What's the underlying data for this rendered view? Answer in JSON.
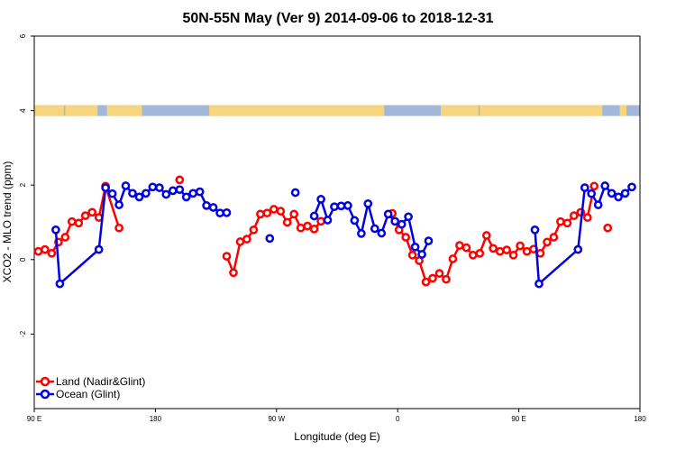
{
  "chart_data": {
    "type": "line",
    "title": "50N-55N May (Ver 9)   2014-09-06 to 2018-12-31",
    "xlabel": "Longitude (deg E)",
    "ylabel": "XCO2 - MLO trend (ppm)",
    "xlim": [
      90,
      540
    ],
    "ylim": [
      -4,
      6
    ],
    "x_ticks": [
      {
        "value": 90,
        "label": "90 E"
      },
      {
        "value": 180,
        "label": "180"
      },
      {
        "value": 270,
        "label": "90 W"
      },
      {
        "value": 360,
        "label": "0"
      },
      {
        "value": 450,
        "label": "90 E"
      },
      {
        "value": 540,
        "label": "180"
      }
    ],
    "y_ticks": [
      {
        "value": -2,
        "label": "-2"
      },
      {
        "value": 0,
        "label": "0"
      },
      {
        "value": 2,
        "label": "2"
      },
      {
        "value": 4,
        "label": "4"
      },
      {
        "value": 6,
        "label": "6"
      }
    ],
    "land_band": {
      "y": 4,
      "land_color": "#f7d57a",
      "ocean_color": "#a3b8d8"
    },
    "legend_position": "bottom-left",
    "series": [
      {
        "name": "Land (Nadir&Glint)",
        "color": "#ff0000",
        "segments": [
          [
            [
              93,
              0.22
            ],
            [
              98,
              0.27
            ],
            [
              103,
              0.17
            ],
            [
              108,
              0.47
            ],
            [
              113,
              0.6
            ],
            [
              118,
              1.02
            ],
            [
              123,
              0.98
            ],
            [
              128,
              1.18
            ],
            [
              133,
              1.27
            ],
            [
              138,
              1.13
            ],
            [
              143,
              1.97
            ],
            [
              153,
              0.85
            ]
          ],
          [
            [
              198,
              2.14
            ]
          ],
          [
            [
              233,
              0.09
            ],
            [
              238,
              -0.35
            ],
            [
              243,
              0.48
            ],
            [
              248,
              0.55
            ],
            [
              253,
              0.8
            ],
            [
              258,
              1.22
            ],
            [
              263,
              1.25
            ],
            [
              268,
              1.35
            ],
            [
              273,
              1.3
            ],
            [
              278,
              1.0
            ],
            [
              283,
              1.22
            ],
            [
              288,
              0.85
            ],
            [
              293,
              0.9
            ],
            [
              298,
              0.82
            ],
            [
              303,
              1.03
            ]
          ],
          [
            [
              356,
              1.24
            ],
            [
              361,
              0.8
            ],
            [
              366,
              0.6
            ],
            [
              371,
              0.12
            ],
            [
              376,
              -0.03
            ],
            [
              381,
              -0.6
            ],
            [
              386,
              -0.5
            ],
            [
              391,
              -0.37
            ],
            [
              396,
              -0.53
            ],
            [
              401,
              0.02
            ],
            [
              406,
              0.38
            ],
            [
              411,
              0.32
            ],
            [
              416,
              0.12
            ],
            [
              421,
              0.17
            ],
            [
              426,
              0.65
            ],
            [
              431,
              0.3
            ],
            [
              436,
              0.22
            ],
            [
              441,
              0.26
            ],
            [
              446,
              0.12
            ],
            [
              451,
              0.37
            ],
            [
              456,
              0.22
            ],
            [
              461,
              0.28
            ],
            [
              466,
              0.17
            ],
            [
              471,
              0.47
            ],
            [
              476,
              0.6
            ],
            [
              481,
              1.02
            ],
            [
              486,
              0.98
            ],
            [
              491,
              1.18
            ],
            [
              496,
              1.27
            ],
            [
              501,
              1.13
            ],
            [
              506,
              1.97
            ]
          ],
          [
            [
              516,
              0.85
            ]
          ]
        ]
      },
      {
        "name": "Ocean (Glint)",
        "color": "#0000e0",
        "segments": [
          [
            [
              106,
              0.8
            ],
            [
              109,
              -0.65
            ],
            [
              138,
              0.27
            ],
            [
              143,
              1.93
            ],
            [
              148,
              1.77
            ],
            [
              153,
              1.47
            ],
            [
              158,
              1.98
            ],
            [
              163,
              1.78
            ],
            [
              168,
              1.68
            ],
            [
              173,
              1.78
            ],
            [
              178,
              1.95
            ],
            [
              183,
              1.93
            ],
            [
              188,
              1.75
            ],
            [
              193,
              1.85
            ],
            [
              198,
              1.88
            ],
            [
              203,
              1.68
            ],
            [
              208,
              1.78
            ],
            [
              213,
              1.82
            ],
            [
              218,
              1.45
            ],
            [
              223,
              1.4
            ],
            [
              228,
              1.25
            ],
            [
              233,
              1.26
            ]
          ],
          [
            [
              265,
              0.57
            ]
          ],
          [
            [
              284,
              1.8
            ]
          ],
          [
            [
              298,
              1.17
            ],
            [
              303,
              1.62
            ],
            [
              308,
              1.06
            ],
            [
              313,
              1.42
            ],
            [
              318,
              1.44
            ],
            [
              323,
              1.45
            ],
            [
              328,
              1.05
            ],
            [
              333,
              0.7
            ],
            [
              338,
              1.5
            ],
            [
              343,
              0.83
            ],
            [
              348,
              0.71
            ],
            [
              353,
              1.22
            ],
            [
              358,
              1.03
            ],
            [
              363,
              0.95
            ],
            [
              368,
              1.15
            ],
            [
              373,
              0.34
            ],
            [
              378,
              0.14
            ],
            [
              383,
              0.5
            ]
          ],
          [
            [
              462,
              0.8
            ],
            [
              465,
              -0.65
            ],
            [
              494,
              0.27
            ],
            [
              499,
              1.93
            ],
            [
              504,
              1.77
            ],
            [
              509,
              1.47
            ],
            [
              514,
              1.98
            ],
            [
              519,
              1.78
            ],
            [
              524,
              1.68
            ],
            [
              529,
              1.78
            ],
            [
              534,
              1.95
            ]
          ]
        ]
      }
    ]
  }
}
